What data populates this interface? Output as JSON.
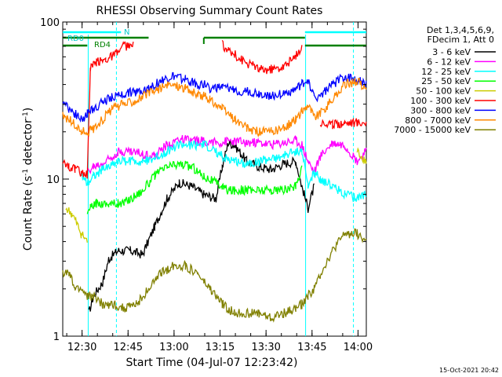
{
  "chart_data": {
    "type": "line",
    "title": "RHESSI Observing Summary Count Rates",
    "xlabel": "Start Time (04-Jul-07 12:23:42)",
    "ylabel": "Count Rate (s⁻¹ detector⁻¹)",
    "ylabel_main": "Count Rate (s",
    "ylabel_sup1": "-1",
    "ylabel_mid": " detector",
    "ylabel_sup2": "-1",
    "ylabel_end": ")",
    "y_scale": "log",
    "ylim": [
      1,
      100
    ],
    "xlim": [
      "12:23:42",
      "14:03:00"
    ],
    "x_tick_labels": [
      "12:30",
      "12:45",
      "13:00",
      "13:15",
      "13:30",
      "13:45",
      "14:00"
    ],
    "x_ticks_min": [
      6.3,
      21.3,
      36.3,
      51.3,
      66.3,
      81.3,
      96.3
    ],
    "y_tick_labels": [
      "1",
      "10",
      "100"
    ],
    "y_ticks": [
      1,
      10,
      100
    ],
    "legend_header": [
      "Det 1,3,4,5,6,9,",
      "FDecim 1, Att 0"
    ],
    "legend_placement": "right",
    "timestamp": "15-Oct-2021 20:42",
    "annotations": {
      "rd0": "RD0",
      "rd4": "RD4",
      "n": "N",
      "cyan_bar": [
        [
          0,
          19
        ],
        [
          79,
          99
        ]
      ],
      "green_bar_segments": [
        [
          0,
          28
        ],
        [
          46,
          79
        ],
        [
          79,
          99
        ]
      ],
      "dashed_lines_min": [
        17.5,
        94.8
      ],
      "solid_lines_min": [
        8.3,
        79.2
      ]
    },
    "series": [
      {
        "name": "3 - 6 keV",
        "color": "#000000",
        "x": [
          0,
          8,
          8.5,
          10,
          13,
          15,
          18,
          22,
          26,
          30,
          34,
          38,
          42,
          46,
          50,
          52,
          54,
          56,
          60,
          64,
          68,
          72,
          76,
          78,
          80,
          82,
          84,
          88,
          92,
          96,
          99
        ],
        "y": [
          null,
          null,
          1.4,
          1.8,
          2.2,
          3.1,
          3.5,
          3.5,
          3.3,
          5,
          7.5,
          9.5,
          9,
          8,
          7.5,
          12,
          17,
          16.5,
          13,
          12,
          11.5,
          12.5,
          13,
          9,
          6.5,
          9,
          null,
          null,
          null,
          null,
          null
        ]
      },
      {
        "name": "6 - 12 keV",
        "color": "#ff00ff",
        "x": [
          0,
          7,
          8,
          10,
          13,
          15,
          18,
          22,
          26,
          30,
          34,
          38,
          42,
          46,
          50,
          52,
          54,
          56,
          60,
          64,
          68,
          72,
          76,
          78,
          80,
          82,
          84,
          88,
          92,
          96,
          99
        ],
        "y": [
          null,
          null,
          11,
          12,
          12.5,
          13.5,
          15,
          15,
          14.5,
          14,
          16.5,
          18,
          17.5,
          17.5,
          17,
          17,
          17.5,
          17.5,
          17,
          17,
          16.5,
          17,
          17.5,
          16.5,
          13,
          11,
          14,
          17,
          16.5,
          13,
          15
        ]
      },
      {
        "name": "12 - 25 keV",
        "color": "#00ffff",
        "x": [
          0,
          5,
          6,
          7,
          8,
          10,
          13,
          15,
          18,
          22,
          26,
          30,
          34,
          38,
          42,
          46,
          50,
          52,
          54,
          56,
          60,
          64,
          68,
          72,
          76,
          78,
          80,
          82,
          84,
          88,
          92,
          96,
          99
        ],
        "y": [
          null,
          null,
          11,
          10,
          9.5,
          10.5,
          11.5,
          12,
          13,
          13,
          13,
          13.5,
          15,
          16.5,
          16.5,
          16.5,
          15,
          14,
          13.5,
          13,
          12.5,
          13,
          13.5,
          14,
          15,
          15,
          9,
          11,
          10,
          9,
          8,
          7.5,
          8
        ]
      },
      {
        "name": "25 - 50 keV",
        "color": "#00ff00",
        "x": [
          0,
          7,
          8,
          9,
          11,
          13,
          15,
          18,
          20,
          22,
          26,
          30,
          34,
          38,
          42,
          46,
          50,
          52,
          54,
          56,
          60,
          64,
          68,
          72,
          76,
          78,
          80,
          82,
          84,
          88,
          92,
          96,
          99
        ],
        "y": [
          null,
          null,
          6,
          6.5,
          7,
          7,
          7,
          7,
          7,
          7.5,
          8.5,
          10.5,
          12,
          12.5,
          12,
          10.5,
          9.5,
          9,
          8.5,
          8.5,
          8.5,
          8.5,
          8.5,
          8.5,
          9,
          12,
          null,
          null,
          null,
          null,
          null,
          null,
          null
        ]
      },
      {
        "name": "50 - 100 keV",
        "color": "#cccc00",
        "x": [
          0,
          1,
          3,
          5,
          6,
          8,
          9,
          11,
          14,
          17,
          20,
          23,
          26,
          30,
          34,
          38,
          42,
          46,
          50,
          52,
          54,
          56,
          60,
          64,
          68,
          72,
          76,
          78,
          80,
          82,
          84,
          88,
          92,
          96,
          99
        ],
        "y": [
          null,
          6.5,
          6,
          5,
          4.5,
          4,
          null,
          null,
          null,
          null,
          null,
          null,
          null,
          null,
          null,
          null,
          null,
          null,
          null,
          null,
          null,
          null,
          null,
          null,
          null,
          null,
          null,
          null,
          null,
          null,
          null,
          null,
          null,
          15,
          13
        ]
      },
      {
        "name": "100 - 300 keV",
        "color": "#ff0000",
        "x": [
          0,
          2,
          4,
          6,
          8,
          9,
          11,
          14,
          17,
          20,
          23,
          26,
          30,
          34,
          38,
          42,
          46,
          50,
          52,
          54,
          56,
          60,
          64,
          68,
          72,
          76,
          78,
          80,
          82,
          84,
          88,
          92,
          96,
          99
        ],
        "y": [
          13,
          12,
          11.5,
          11,
          10.5,
          50,
          55,
          58,
          62,
          70,
          70,
          null,
          null,
          null,
          null,
          null,
          null,
          null,
          72,
          65,
          62,
          55,
          50,
          50,
          52,
          60,
          70,
          null,
          null,
          23,
          22,
          23,
          23,
          23
        ]
      },
      {
        "name": "300 - 800 keV",
        "color": "#0000ff",
        "x": [
          0,
          2,
          4,
          6,
          8,
          10,
          13,
          16,
          20,
          24,
          28,
          32,
          36,
          40,
          44,
          46,
          48,
          52,
          56,
          60,
          64,
          68,
          72,
          76,
          78,
          80,
          82,
          84,
          88,
          92,
          96,
          99
        ],
        "y": [
          32,
          28,
          26,
          24,
          26,
          28,
          31,
          33,
          35,
          36,
          38,
          42,
          45,
          43,
          40,
          40,
          38,
          38,
          37,
          36,
          35,
          34,
          35,
          37,
          40,
          43,
          33,
          34,
          40,
          45,
          43,
          40
        ]
      },
      {
        "name": "800 - 7000 keV",
        "color": "#ff8800",
        "x": [
          0,
          2,
          4,
          6,
          8,
          10,
          13,
          16,
          20,
          24,
          28,
          32,
          36,
          40,
          44,
          46,
          48,
          52,
          56,
          60,
          64,
          68,
          72,
          76,
          78,
          80,
          82,
          84,
          88,
          92,
          96,
          99
        ],
        "y": [
          25,
          24,
          22,
          20,
          20,
          21,
          24,
          28,
          30,
          32,
          35,
          38,
          40,
          38,
          34,
          34,
          32,
          28,
          24,
          21,
          20,
          20,
          21,
          24,
          27,
          30,
          25,
          26,
          32,
          40,
          42,
          38
        ]
      },
      {
        "name": "7000 - 15000 keV",
        "color": "#808000",
        "x": [
          0,
          2,
          4,
          6,
          8,
          10,
          13,
          16,
          20,
          24,
          28,
          32,
          36,
          40,
          44,
          46,
          48,
          52,
          56,
          60,
          64,
          68,
          72,
          76,
          78,
          80,
          82,
          84,
          88,
          92,
          96,
          99
        ],
        "y": [
          2.5,
          2.5,
          2,
          2,
          1.8,
          1.8,
          1.6,
          1.6,
          1.5,
          1.6,
          2,
          2.5,
          2.8,
          2.8,
          2.5,
          2.2,
          2,
          1.6,
          1.4,
          1.4,
          1.4,
          1.3,
          1.4,
          1.5,
          1.6,
          1.8,
          2,
          2.5,
          3.5,
          4.5,
          4.5,
          4
        ]
      }
    ]
  }
}
